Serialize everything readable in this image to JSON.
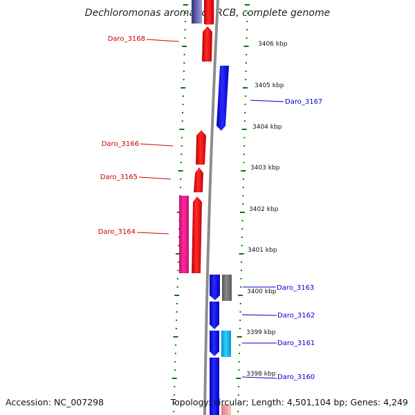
{
  "title": "Dechloromonas aromatica RCB, complete genome",
  "footer": {
    "accession": "Accession: NC_007298",
    "topology": "Topology: circular; Length: 4,501,104 bp; Genes: 4,249"
  },
  "colors": {
    "forward_strand": "#ff0000",
    "reverse_strand": "#0000ff",
    "forward_highlight": "#ff1493",
    "reverse_highlight": "#00bfff",
    "neutral": "#777777",
    "backbone": "#8c8c8c",
    "tick_marks": "#007700",
    "forward_label": "#cc0000",
    "reverse_label": "#0000cc"
  },
  "kbp_scale": [
    {
      "label": "3406 kbp"
    },
    {
      "label": "3405 kbp"
    },
    {
      "label": "3404 kbp"
    },
    {
      "label": "3403 kbp"
    },
    {
      "label": "3402 kbp"
    },
    {
      "label": "3401 kbp"
    },
    {
      "label": "3400 kbp"
    },
    {
      "label": "3399 kbp"
    },
    {
      "label": "3398 kbp"
    }
  ],
  "gene_labels": [
    {
      "text": "Daro_3168",
      "strand": "forward"
    },
    {
      "text": "Daro_3167",
      "strand": "reverse"
    },
    {
      "text": "Daro_3166",
      "strand": "forward"
    },
    {
      "text": "Daro_3165",
      "strand": "forward"
    },
    {
      "text": "Daro_3164",
      "strand": "forward"
    },
    {
      "text": "Daro_3163",
      "strand": "reverse"
    },
    {
      "text": "Daro_3162",
      "strand": "reverse"
    },
    {
      "text": "Daro_3161",
      "strand": "reverse"
    },
    {
      "text": "Daro_3160",
      "strand": "reverse"
    }
  ]
}
